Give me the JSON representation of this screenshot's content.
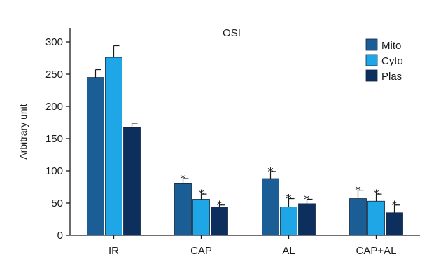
{
  "chart_data": {
    "type": "bar",
    "title": "OSI",
    "ylabel": "Arbitrary unit",
    "xlabel": "",
    "ylim": [
      0,
      300
    ],
    "yticks": [
      "0",
      "50",
      "100",
      "150",
      "200",
      "250",
      "300"
    ],
    "categories": [
      "IR",
      "CAP",
      "AL",
      "CAP+AL"
    ],
    "series": [
      {
        "name": "Mito",
        "color": "#1b5e96",
        "values": [
          245,
          80,
          88,
          57
        ],
        "errors": [
          12,
          8,
          11,
          13
        ],
        "significance": [
          "",
          "*",
          "*",
          "*"
        ]
      },
      {
        "name": "Cyto",
        "color": "#1ea6e6",
        "values": [
          276,
          56,
          44,
          53
        ],
        "errors": [
          18,
          8,
          13,
          11
        ],
        "significance": [
          "",
          "*",
          "*",
          "*"
        ]
      },
      {
        "name": "Plas",
        "color": "#0d2f5e",
        "values": [
          167,
          44,
          49,
          35
        ],
        "errors": [
          7,
          3,
          7,
          12
        ],
        "significance": [
          "",
          "*",
          "*",
          "*"
        ]
      }
    ],
    "legend_position": "top-right",
    "grid": false
  }
}
